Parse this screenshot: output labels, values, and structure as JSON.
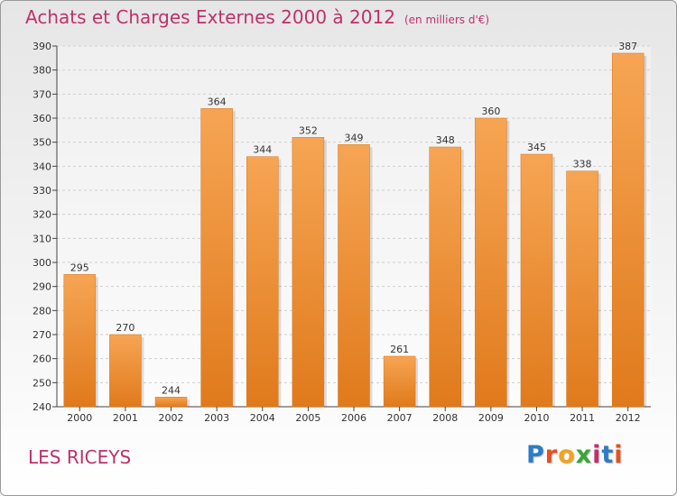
{
  "title": "Achats et Charges Externes 2000 à 2012",
  "subtitle": "(en milliers d'€)",
  "city": "LES RICEYS",
  "logo": {
    "letters": [
      "P",
      "r",
      "o",
      "x",
      "i",
      "t",
      "i"
    ],
    "colors": [
      "#2c7cc7",
      "#e8501d",
      "#f2a31a",
      "#3aa537",
      "#c0306b",
      "#2c7cc7",
      "#e8501d"
    ]
  },
  "chart_data": {
    "type": "bar",
    "categories": [
      "2000",
      "2001",
      "2002",
      "2003",
      "2004",
      "2005",
      "2006",
      "2007",
      "2008",
      "2009",
      "2010",
      "2011",
      "2012"
    ],
    "values": [
      295,
      270,
      244,
      364,
      344,
      352,
      349,
      261,
      348,
      360,
      345,
      338,
      387
    ],
    "ylim": [
      240,
      390
    ],
    "ytick_step": 10,
    "grid": true,
    "bar_color_top": "#f6a554",
    "bar_color_bottom": "#e07a1c"
  }
}
